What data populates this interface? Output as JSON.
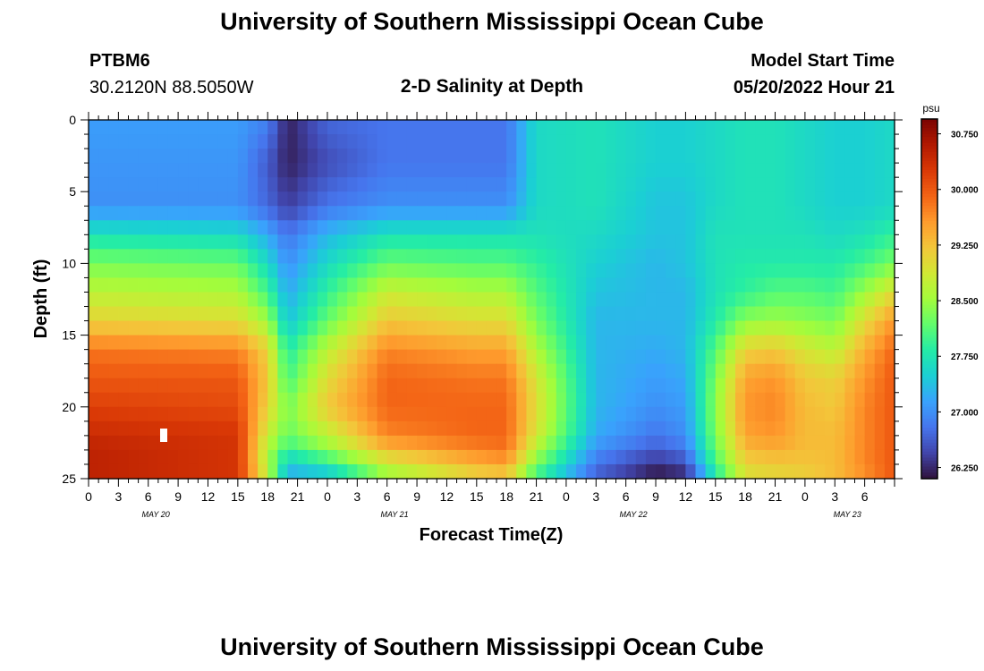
{
  "header": {
    "title": "University of Southern Mississippi Ocean Cube",
    "station": "PTBM6",
    "coords": "30.2120N  88.5050W",
    "subtitle": "2-D Salinity at Depth",
    "start_label": "Model Start Time",
    "start_value": "05/20/2022 Hour 21"
  },
  "footer": {
    "title": "University of Southern Mississippi Ocean Cube"
  },
  "chart_data": {
    "type": "heatmap",
    "title": "2-D Salinity at Depth",
    "xlabel": "Forecast Time(Z)",
    "ylabel": "Depth (ft)",
    "x_unit": "forecast hour (Z)",
    "x_range": [
      21,
      102
    ],
    "y_range": [
      0,
      25
    ],
    "y_inverted": true,
    "x_ticks": [
      "0",
      "3",
      "6",
      "9",
      "12",
      "15",
      "18",
      "21",
      "0",
      "3",
      "6",
      "9",
      "12",
      "15",
      "18",
      "21",
      "0",
      "3",
      "6",
      "9",
      "12",
      "15",
      "18",
      "21",
      "0",
      "3",
      "6"
    ],
    "y_ticks": [
      "0",
      "5",
      "10",
      "15",
      "20",
      "25"
    ],
    "day_labels": [
      "MAY 20",
      "MAY 21",
      "MAY 22",
      "MAY 23"
    ],
    "colorbar": {
      "unit": "psu",
      "ticks": [
        "30.750",
        "30.000",
        "29.250",
        "28.500",
        "27.750",
        "27.000",
        "26.250"
      ],
      "range": [
        26.1,
        30.95
      ]
    },
    "time_keys": [
      21,
      36,
      39,
      41,
      45,
      51,
      60,
      63,
      66,
      72,
      78,
      81,
      84,
      87,
      90,
      93,
      96,
      99,
      102
    ],
    "depth_keys": [
      0,
      3,
      6,
      8,
      10,
      12,
      14,
      16,
      18,
      20,
      22,
      23,
      24,
      25
    ],
    "salinity_grid": [
      [
        27.1,
        27.05,
        27.0,
        27.7,
        28.3,
        28.7,
        29.1,
        29.8,
        30.0,
        30.2,
        30.4,
        30.5,
        30.5,
        30.5
      ],
      [
        27.1,
        27.05,
        27.0,
        27.6,
        28.2,
        28.6,
        29.0,
        29.7,
        30.0,
        30.1,
        30.3,
        30.3,
        30.3,
        30.3
      ],
      [
        26.9,
        26.6,
        26.7,
        27.2,
        27.6,
        28.0,
        28.5,
        29.1,
        29.2,
        29.1,
        28.8,
        28.6,
        28.6,
        28.8
      ],
      [
        26.2,
        26.2,
        26.4,
        26.8,
        27.0,
        27.2,
        27.4,
        27.8,
        28.0,
        28.3,
        28.2,
        27.9,
        27.4,
        27.2
      ],
      [
        26.7,
        26.5,
        26.8,
        27.3,
        27.6,
        27.9,
        28.2,
        28.7,
        29.0,
        29.2,
        28.7,
        28.4,
        27.8,
        27.3
      ],
      [
        26.8,
        26.8,
        27.0,
        27.7,
        28.2,
        28.8,
        29.2,
        29.7,
        29.9,
        29.9,
        29.7,
        29.3,
        28.8,
        28.4
      ],
      [
        26.8,
        26.8,
        27.0,
        27.7,
        28.1,
        28.6,
        29.0,
        29.5,
        29.8,
        29.9,
        29.9,
        29.7,
        29.4,
        29.0
      ],
      [
        26.8,
        26.8,
        27.0,
        27.7,
        28.1,
        28.6,
        29.0,
        29.5,
        29.8,
        29.9,
        29.9,
        29.8,
        29.5,
        29.1
      ],
      [
        27.6,
        27.6,
        27.6,
        27.7,
        27.9,
        28.1,
        28.3,
        28.6,
        28.9,
        29.0,
        28.9,
        28.6,
        28.3,
        27.9
      ],
      [
        27.7,
        27.7,
        27.7,
        27.6,
        27.5,
        27.4,
        27.3,
        27.3,
        27.3,
        27.3,
        27.2,
        27.0,
        26.8,
        26.6
      ],
      [
        27.5,
        27.5,
        27.4,
        27.4,
        27.3,
        27.3,
        27.3,
        27.2,
        27.1,
        27.0,
        26.8,
        26.6,
        26.3,
        26.1
      ],
      [
        27.5,
        27.5,
        27.4,
        27.4,
        27.4,
        27.3,
        27.3,
        27.3,
        27.2,
        27.1,
        27.0,
        26.8,
        26.5,
        26.2
      ],
      [
        27.6,
        27.6,
        27.6,
        27.7,
        27.7,
        27.7,
        27.8,
        28.1,
        28.3,
        28.4,
        28.3,
        28.2,
        28.0,
        27.7
      ],
      [
        27.7,
        27.7,
        27.7,
        27.7,
        27.8,
        27.9,
        28.4,
        29.1,
        29.5,
        29.6,
        29.5,
        29.3,
        29.1,
        28.9
      ],
      [
        27.7,
        27.7,
        27.7,
        27.7,
        27.8,
        28.1,
        28.5,
        29.2,
        29.6,
        29.7,
        29.6,
        29.4,
        29.2,
        29.0
      ],
      [
        27.6,
        27.6,
        27.6,
        27.7,
        27.8,
        28.1,
        28.4,
        28.9,
        29.2,
        29.3,
        29.3,
        29.3,
        29.2,
        29.1
      ],
      [
        27.5,
        27.5,
        27.5,
        27.6,
        27.8,
        28.0,
        28.3,
        28.7,
        29.1,
        29.2,
        29.3,
        29.3,
        29.3,
        29.3
      ],
      [
        27.5,
        27.5,
        27.5,
        27.7,
        28.0,
        28.5,
        29.0,
        29.4,
        29.6,
        29.7,
        29.7,
        29.7,
        29.7,
        29.6
      ],
      [
        27.6,
        27.6,
        27.6,
        27.9,
        28.3,
        29.0,
        29.6,
        29.9,
        30.0,
        30.0,
        30.0,
        30.0,
        30.0,
        30.0
      ]
    ]
  },
  "theme": {
    "colormap": [
      "#30123b",
      "#4145ab",
      "#4675ed",
      "#39a2fc",
      "#1bcfd4",
      "#24eca6",
      "#61fc6c",
      "#a4fc3b",
      "#d1e834",
      "#f3c63a",
      "#fe9b2d",
      "#f36315",
      "#d93806",
      "#b11901",
      "#7a0402"
    ]
  }
}
